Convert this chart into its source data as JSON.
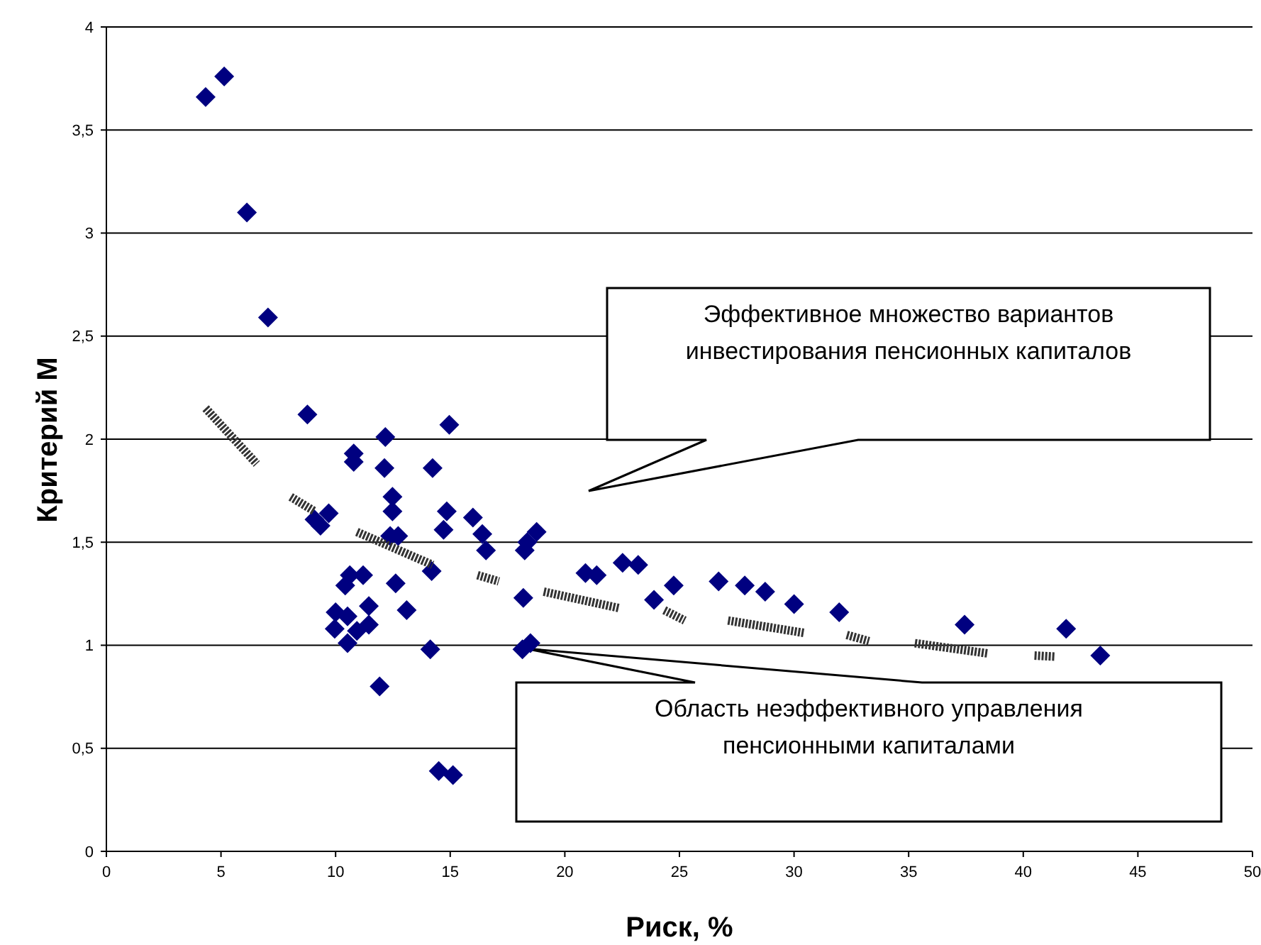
{
  "chart_data": {
    "type": "scatter",
    "xlabel": "Риск, %",
    "ylabel": "Критерий M",
    "xlim": [
      0,
      50
    ],
    "xticks": [
      0,
      5,
      10,
      15,
      20,
      25,
      30,
      35,
      40,
      45,
      50
    ],
    "ylim": [
      0,
      4
    ],
    "yticks": [
      0,
      {
        "value": 0.5,
        "label": "0,5"
      },
      1,
      {
        "value": 1.5,
        "label": "1,5"
      },
      2,
      {
        "value": 2.5,
        "label": "2,5"
      },
      3,
      {
        "value": 3.5,
        "label": "3,5"
      },
      4
    ],
    "grid": "y",
    "series": [
      {
        "type": "scatter",
        "marker": "diamond",
        "color": "#000080",
        "x": [
          4.33,
          5.14,
          6.13,
          7.05,
          8.77,
          12.17,
          14.96,
          10.79,
          10.79,
          12.13,
          14.23,
          12.48,
          12.48,
          9.08,
          9.7,
          9.34,
          14.85,
          14.71,
          15.99,
          16.4,
          16.56,
          12.38,
          12.73,
          18.77,
          18.36,
          18.25,
          14.19,
          10.62,
          11.2,
          10.42,
          12.62,
          18.19,
          13.1,
          11.45,
          10.0,
          10.52,
          9.96,
          11.45,
          10.93,
          10.52,
          14.13,
          18.15,
          18.5,
          11.92,
          14.5,
          15.12,
          20.9,
          21.39,
          22.52,
          23.2,
          23.89,
          24.75,
          26.71,
          27.85,
          28.74,
          30.0,
          31.97,
          37.44,
          41.87,
          43.36
        ],
        "values": [
          3.66,
          3.76,
          3.1,
          2.59,
          2.12,
          2.01,
          2.07,
          1.93,
          1.89,
          1.86,
          1.86,
          1.72,
          1.65,
          1.61,
          1.64,
          1.58,
          1.65,
          1.56,
          1.62,
          1.54,
          1.46,
          1.53,
          1.53,
          1.55,
          1.5,
          1.46,
          1.36,
          1.34,
          1.34,
          1.29,
          1.3,
          1.23,
          1.17,
          1.19,
          1.16,
          1.14,
          1.08,
          1.1,
          1.07,
          1.01,
          0.98,
          0.98,
          1.01,
          0.8,
          0.39,
          0.37,
          1.35,
          1.34,
          1.4,
          1.39,
          1.22,
          1.29,
          1.31,
          1.29,
          1.26,
          1.2,
          1.16,
          1.1,
          1.08,
          0.95
        ]
      },
      {
        "type": "line",
        "marker": "none",
        "line_style": "dashed",
        "color": "#333333",
        "x": [
          4.33,
          6.56,
          6.6,
          8.04,
          9.08,
          9.1,
          10.93,
          14.23,
          14.3,
          16.19,
          17.12,
          17.2,
          19.08,
          22.38,
          22.4,
          24.34,
          25.23,
          25.3,
          27.12,
          30.43,
          30.5,
          32.3,
          33.27,
          33.3,
          35.27,
          38.47,
          38.5,
          40.49,
          41.36
        ],
        "values": [
          2.15,
          1.88,
          null,
          1.72,
          1.65,
          null,
          1.55,
          1.39,
          null,
          1.34,
          1.31,
          null,
          1.26,
          1.18,
          null,
          1.17,
          1.12,
          null,
          1.12,
          1.06,
          null,
          1.05,
          1.02,
          null,
          1.01,
          0.96,
          null,
          0.95,
          0.945
        ]
      }
    ],
    "annotations": [
      "Эффективное множество вариантов\nинвестирования пенсионных капиталов",
      "Область неэффективного управления\nпенсионными капиталами"
    ]
  }
}
